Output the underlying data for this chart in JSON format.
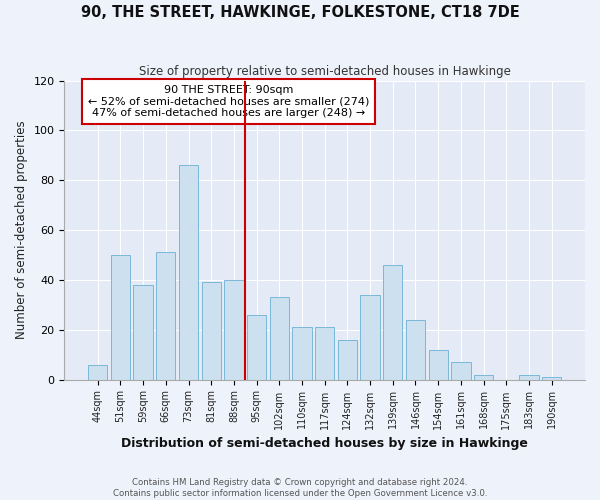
{
  "title": "90, THE STREET, HAWKINGE, FOLKESTONE, CT18 7DE",
  "subtitle": "Size of property relative to semi-detached houses in Hawkinge",
  "xlabel": "Distribution of semi-detached houses by size in Hawkinge",
  "ylabel": "Number of semi-detached properties",
  "footer1": "Contains HM Land Registry data © Crown copyright and database right 2024.",
  "footer2": "Contains public sector information licensed under the Open Government Licence v3.0.",
  "annotation_title": "90 THE STREET: 90sqm",
  "annotation_line1": "← 52% of semi-detached houses are smaller (274)",
  "annotation_line2": "47% of semi-detached houses are larger (248) →",
  "bar_labels": [
    "44sqm",
    "51sqm",
    "59sqm",
    "66sqm",
    "73sqm",
    "81sqm",
    "88sqm",
    "95sqm",
    "102sqm",
    "110sqm",
    "117sqm",
    "124sqm",
    "132sqm",
    "139sqm",
    "146sqm",
    "154sqm",
    "161sqm",
    "168sqm",
    "175sqm",
    "183sqm",
    "190sqm"
  ],
  "bar_values": [
    6,
    50,
    38,
    51,
    86,
    39,
    40,
    26,
    33,
    21,
    21,
    16,
    34,
    46,
    24,
    12,
    7,
    2,
    0,
    2,
    1
  ],
  "bar_color": "#cce0f0",
  "bar_edge_color": "#7ab8d9",
  "vline_x": 6.5,
  "vline_color": "#cc0000",
  "annotation_box_edge": "#cc0000",
  "background_color": "#eef2fb",
  "plot_bg_color": "#e4eaf6",
  "grid_color": "#ffffff",
  "ylim": [
    0,
    120
  ],
  "yticks": [
    0,
    20,
    40,
    60,
    80,
    100,
    120
  ]
}
